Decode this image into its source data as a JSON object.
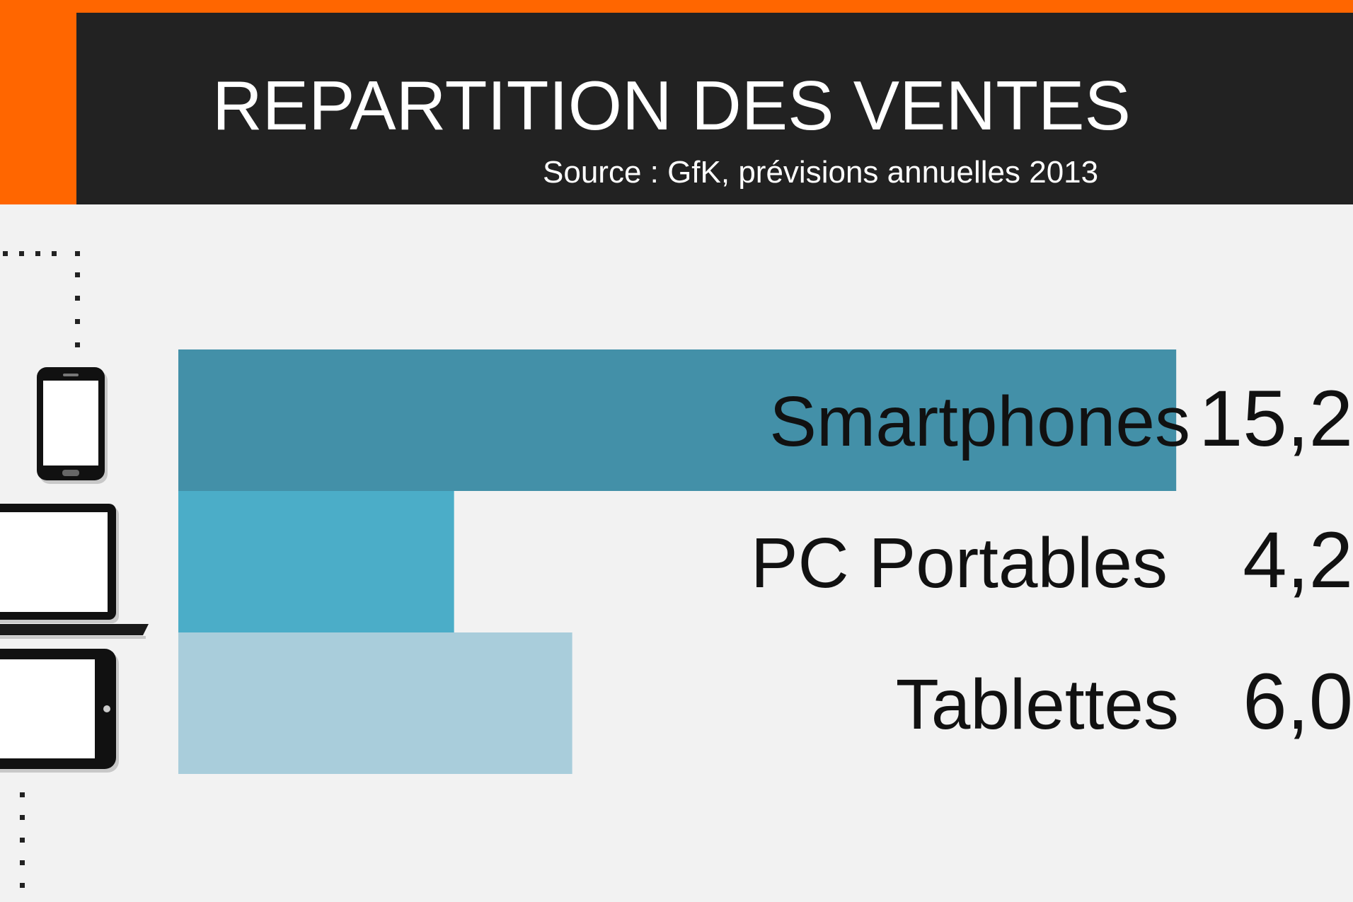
{
  "header": {
    "title": "REPARTITION DES VENTES",
    "subtitle": "Source : GfK, prévisions annuelles 2013"
  },
  "colors": {
    "accent": "#ff6600",
    "header_bg": "#222222",
    "background": "#f2f2f2"
  },
  "icons": [
    "smartphone-icon",
    "laptop-icon",
    "tablet-icon"
  ],
  "chart_data": {
    "type": "bar",
    "orientation": "horizontal",
    "title": "REPARTITION DES VENTES",
    "subtitle": "Source : GfK, prévisions annuelles 2013",
    "categories": [
      "Smartphones",
      "PC Portables",
      "Tablettes"
    ],
    "values": [
      15.2,
      4.2,
      6.0
    ],
    "value_labels": [
      "15,2",
      "4,2",
      "6,0"
    ],
    "colors": [
      "#4390a8",
      "#4badc8",
      "#a9cddb"
    ],
    "xlim": [
      0,
      15.5
    ],
    "grid": false,
    "legend": "none"
  }
}
